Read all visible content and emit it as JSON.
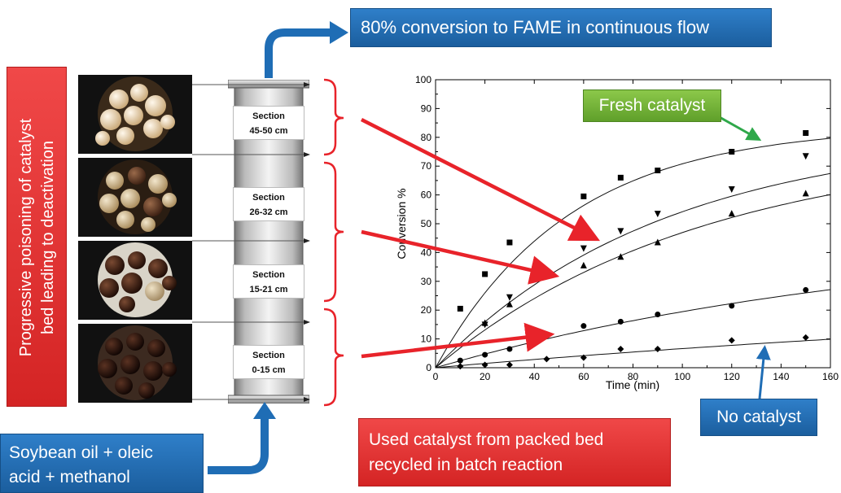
{
  "top_box": "80% conversion to FAME in continuous flow",
  "feed_box": {
    "line1": "Soybean oil + oleic",
    "line2": "acid + methanol"
  },
  "used_box": {
    "line1": "Used catalyst from packed bed",
    "line2": "recycled in batch reaction"
  },
  "no_catalyst_box": "No catalyst",
  "fresh_catalyst_box": "Fresh catalyst",
  "vertical_box": {
    "line1": "Progressive poisoning of catalyst",
    "line2": "bed leading to deactivation"
  },
  "sections": [
    {
      "title": "Section",
      "range": "45-50 cm"
    },
    {
      "title": "Section",
      "range": "26-32 cm"
    },
    {
      "title": "Section",
      "range": "15-21 cm"
    },
    {
      "title": "Section",
      "range": "0-15 cm"
    }
  ],
  "colors": {
    "blue": "#1f6db5",
    "red": "#e03030",
    "green": "#6fb236",
    "arrow_red": "#e8232a",
    "arrow_green": "#2fa84a"
  },
  "chart_data": {
    "type": "scatter",
    "xlabel": "Time (min)",
    "ylabel": "Conversion %",
    "xlim": [
      0,
      160
    ],
    "ylim": [
      0,
      100
    ],
    "xticks": [
      0,
      20,
      40,
      60,
      80,
      100,
      120,
      140,
      160
    ],
    "yticks": [
      0,
      10,
      20,
      30,
      40,
      50,
      60,
      70,
      80,
      90,
      100
    ],
    "series": [
      {
        "marker": "square",
        "points": [
          [
            10,
            20.5
          ],
          [
            20,
            32.5
          ],
          [
            30,
            43.5
          ],
          [
            60,
            59.5
          ],
          [
            75,
            66
          ],
          [
            90,
            68.5
          ],
          [
            120,
            75
          ],
          [
            150,
            81.5
          ]
        ],
        "fit": {
          "a": 84,
          "k": 0.0185
        }
      },
      {
        "marker": "triangle-down",
        "points": [
          [
            20,
            15
          ],
          [
            30,
            24.5
          ],
          [
            60,
            41.5
          ],
          [
            75,
            47.5
          ],
          [
            90,
            53.5
          ],
          [
            120,
            62
          ],
          [
            150,
            73.5
          ]
        ],
        "fit": {
          "a": 82,
          "k": 0.0108
        }
      },
      {
        "marker": "triangle-up",
        "points": [
          [
            20,
            15.5
          ],
          [
            30,
            22
          ],
          [
            60,
            35.5
          ],
          [
            75,
            38.5
          ],
          [
            90,
            43.5
          ],
          [
            120,
            53.5
          ],
          [
            150,
            60.5
          ]
        ],
        "fit": {
          "a": 78,
          "k": 0.0092
        }
      },
      {
        "marker": "circle",
        "points": [
          [
            10,
            2.5
          ],
          [
            20,
            4.5
          ],
          [
            30,
            6.5
          ],
          [
            60,
            14.5
          ],
          [
            75,
            16
          ],
          [
            90,
            18.5
          ],
          [
            120,
            21.5
          ],
          [
            150,
            27
          ]
        ],
        "fit": {
          "a": 48,
          "k": 0.0052
        }
      },
      {
        "marker": "diamond",
        "points": [
          [
            10,
            0.5
          ],
          [
            20,
            1
          ],
          [
            30,
            1
          ],
          [
            45,
            3
          ],
          [
            60,
            3.5
          ],
          [
            75,
            6.5
          ],
          [
            90,
            6.5
          ],
          [
            120,
            9.5
          ],
          [
            150,
            10.5
          ]
        ],
        "fit": {
          "a": 30,
          "k": 0.0025
        }
      }
    ]
  }
}
